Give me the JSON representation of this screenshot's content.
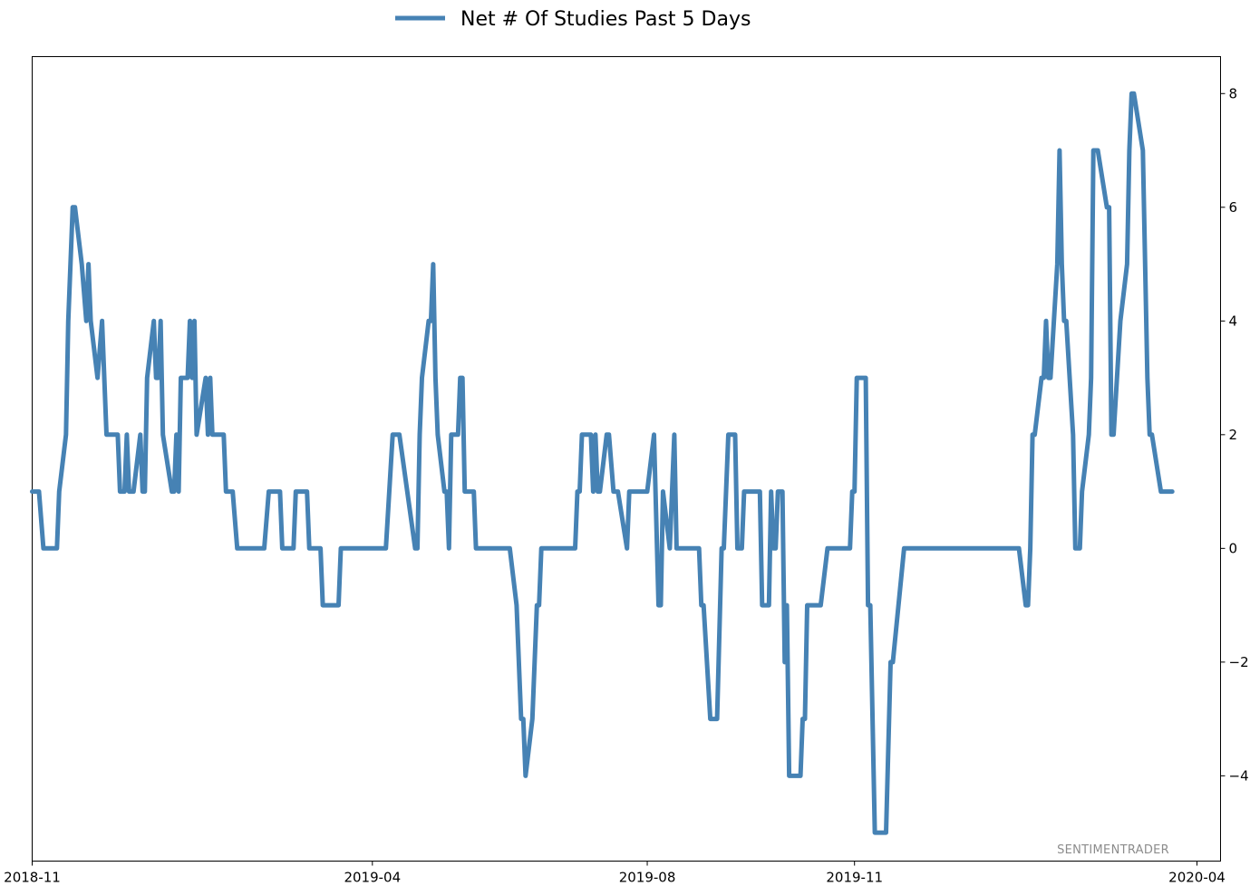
{
  "chart_data": {
    "type": "line",
    "title": "",
    "xlabel": "",
    "ylabel": "",
    "x_ticks": [
      "2018-11",
      "2019-04",
      "2019-08",
      "2019-11",
      "2020-04"
    ],
    "y_ticks": [
      -4,
      -2,
      0,
      2,
      4,
      6,
      8
    ],
    "ylim": [
      -5.5,
      8.65
    ],
    "xlim": [
      "2018-11-01",
      "2020-04-01"
    ],
    "grid": false,
    "legend_position": "top-center",
    "y_axis_side": "right",
    "watermark": "SENTIMENTRADER",
    "series": [
      {
        "name": "Net # Of Studies Past 5 Days",
        "color": "#4682b4",
        "points": [
          [
            "2018-11-01",
            1
          ],
          [
            "2018-11-04",
            1
          ],
          [
            "2018-11-06",
            0
          ],
          [
            "2018-11-12",
            0
          ],
          [
            "2018-11-13",
            1
          ],
          [
            "2018-11-16",
            2
          ],
          [
            "2018-11-17",
            4
          ],
          [
            "2018-11-19",
            6
          ],
          [
            "2018-11-20",
            6
          ],
          [
            "2018-11-23",
            5
          ],
          [
            "2018-11-25",
            4
          ],
          [
            "2018-11-26",
            5
          ],
          [
            "2018-11-27",
            4
          ],
          [
            "2018-11-30",
            3
          ],
          [
            "2018-12-02",
            4
          ],
          [
            "2018-12-04",
            2
          ],
          [
            "2018-12-09",
            2
          ],
          [
            "2018-12-10",
            1
          ],
          [
            "2018-12-12",
            1
          ],
          [
            "2018-12-13",
            2
          ],
          [
            "2018-12-14",
            1
          ],
          [
            "2018-12-16",
            1
          ],
          [
            "2018-12-19",
            2
          ],
          [
            "2018-12-20",
            1
          ],
          [
            "2018-12-21",
            1
          ],
          [
            "2018-12-22",
            3
          ],
          [
            "2018-12-25",
            4
          ],
          [
            "2018-12-26",
            3
          ],
          [
            "2018-12-27",
            3
          ],
          [
            "2018-12-28",
            4
          ],
          [
            "2018-12-29",
            2
          ],
          [
            "2019-01-02",
            1
          ],
          [
            "2019-01-03",
            1
          ],
          [
            "2019-01-04",
            2
          ],
          [
            "2019-01-05",
            1
          ],
          [
            "2019-01-06",
            3
          ],
          [
            "2019-01-09",
            3
          ],
          [
            "2019-01-10",
            4
          ],
          [
            "2019-01-11",
            3
          ],
          [
            "2019-01-12",
            4
          ],
          [
            "2019-01-13",
            2
          ],
          [
            "2019-01-17",
            3
          ],
          [
            "2019-01-18",
            2
          ],
          [
            "2019-01-19",
            3
          ],
          [
            "2019-01-20",
            2
          ],
          [
            "2019-01-25",
            2
          ],
          [
            "2019-01-26",
            1
          ],
          [
            "2019-01-29",
            1
          ],
          [
            "2019-01-31",
            0
          ],
          [
            "2019-02-12",
            0
          ],
          [
            "2019-02-14",
            1
          ],
          [
            "2019-02-19",
            1
          ],
          [
            "2019-02-20",
            0
          ],
          [
            "2019-02-25",
            0
          ],
          [
            "2019-02-26",
            1
          ],
          [
            "2019-03-03",
            1
          ],
          [
            "2019-03-04",
            0
          ],
          [
            "2019-03-09",
            0
          ],
          [
            "2019-03-10",
            -1
          ],
          [
            "2019-03-17",
            -1
          ],
          [
            "2019-03-18",
            0
          ],
          [
            "2019-04-07",
            0
          ],
          [
            "2019-04-10",
            2
          ],
          [
            "2019-04-13",
            2
          ],
          [
            "2019-04-20",
            0
          ],
          [
            "2019-04-21",
            0
          ],
          [
            "2019-04-22",
            2
          ],
          [
            "2019-04-23",
            3
          ],
          [
            "2019-04-26",
            4
          ],
          [
            "2019-04-27",
            4
          ],
          [
            "2019-04-28",
            5
          ],
          [
            "2019-04-29",
            3
          ],
          [
            "2019-04-30",
            2
          ],
          [
            "2019-05-03",
            1
          ],
          [
            "2019-05-04",
            1
          ],
          [
            "2019-05-05",
            0
          ],
          [
            "2019-05-06",
            2
          ],
          [
            "2019-05-09",
            2
          ],
          [
            "2019-05-10",
            3
          ],
          [
            "2019-05-11",
            3
          ],
          [
            "2019-05-12",
            1
          ],
          [
            "2019-05-16",
            1
          ],
          [
            "2019-05-17",
            0
          ],
          [
            "2019-06-01",
            0
          ],
          [
            "2019-06-04",
            -1
          ],
          [
            "2019-06-06",
            -3
          ],
          [
            "2019-06-07",
            -3
          ],
          [
            "2019-06-08",
            -4
          ],
          [
            "2019-06-11",
            -3
          ],
          [
            "2019-06-13",
            -1
          ],
          [
            "2019-06-14",
            -1
          ],
          [
            "2019-06-15",
            0
          ],
          [
            "2019-06-30",
            0
          ],
          [
            "2019-07-01",
            1
          ],
          [
            "2019-07-02",
            1
          ],
          [
            "2019-07-03",
            2
          ],
          [
            "2019-07-07",
            2
          ],
          [
            "2019-07-08",
            1
          ],
          [
            "2019-07-09",
            2
          ],
          [
            "2019-07-10",
            1
          ],
          [
            "2019-07-11",
            1
          ],
          [
            "2019-07-14",
            2
          ],
          [
            "2019-07-15",
            2
          ],
          [
            "2019-07-17",
            1
          ],
          [
            "2019-07-19",
            1
          ],
          [
            "2019-07-23",
            0
          ],
          [
            "2019-07-24",
            1
          ],
          [
            "2019-08-01",
            1
          ],
          [
            "2019-08-04",
            2
          ],
          [
            "2019-08-06",
            -1
          ],
          [
            "2019-08-07",
            -1
          ],
          [
            "2019-08-08",
            1
          ],
          [
            "2019-08-11",
            0
          ],
          [
            "2019-08-13",
            2
          ],
          [
            "2019-08-14",
            0
          ],
          [
            "2019-08-24",
            0
          ],
          [
            "2019-08-25",
            -1
          ],
          [
            "2019-08-26",
            -1
          ],
          [
            "2019-08-29",
            -3
          ],
          [
            "2019-09-01",
            -3
          ],
          [
            "2019-09-03",
            0
          ],
          [
            "2019-09-04",
            0
          ],
          [
            "2019-09-06",
            2
          ],
          [
            "2019-09-09",
            2
          ],
          [
            "2019-09-10",
            0
          ],
          [
            "2019-09-12",
            0
          ],
          [
            "2019-09-13",
            1
          ],
          [
            "2019-09-20",
            1
          ],
          [
            "2019-09-21",
            -1
          ],
          [
            "2019-09-24",
            -1
          ],
          [
            "2019-09-25",
            1
          ],
          [
            "2019-09-26",
            0
          ],
          [
            "2019-09-27",
            0
          ],
          [
            "2019-09-28",
            1
          ],
          [
            "2019-09-30",
            1
          ],
          [
            "2019-10-01",
            -2
          ],
          [
            "2019-10-02",
            -1
          ],
          [
            "2019-10-03",
            -4
          ],
          [
            "2019-10-08",
            -4
          ],
          [
            "2019-10-09",
            -3
          ],
          [
            "2019-10-10",
            -3
          ],
          [
            "2019-10-11",
            -1
          ],
          [
            "2019-10-17",
            -1
          ],
          [
            "2019-10-20",
            0
          ],
          [
            "2019-10-30",
            0
          ],
          [
            "2019-10-31",
            1
          ],
          [
            "2019-11-01",
            1
          ],
          [
            "2019-11-02",
            3
          ],
          [
            "2019-11-06",
            3
          ],
          [
            "2019-11-07",
            -1
          ],
          [
            "2019-11-08",
            -1
          ],
          [
            "2019-11-10",
            -5
          ],
          [
            "2019-11-15",
            -5
          ],
          [
            "2019-11-17",
            -2
          ],
          [
            "2019-11-18",
            -2
          ],
          [
            "2019-11-23",
            0
          ],
          [
            "2020-01-13",
            0
          ],
          [
            "2020-01-16",
            -1
          ],
          [
            "2020-01-17",
            -1
          ],
          [
            "2020-01-18",
            0
          ],
          [
            "2020-01-19",
            2
          ],
          [
            "2020-01-20",
            2
          ],
          [
            "2020-01-23",
            3
          ],
          [
            "2020-01-24",
            3
          ],
          [
            "2020-01-25",
            4
          ],
          [
            "2020-01-26",
            3
          ],
          [
            "2020-01-27",
            3
          ],
          [
            "2020-01-30",
            5
          ],
          [
            "2020-01-31",
            7
          ],
          [
            "2020-02-01",
            5
          ],
          [
            "2020-02-02",
            4
          ],
          [
            "2020-02-03",
            4
          ],
          [
            "2020-02-06",
            2
          ],
          [
            "2020-02-07",
            0
          ],
          [
            "2020-02-09",
            0
          ],
          [
            "2020-02-10",
            1
          ],
          [
            "2020-02-13",
            2
          ],
          [
            "2020-02-14",
            3
          ],
          [
            "2020-02-15",
            7
          ],
          [
            "2020-02-17",
            7
          ],
          [
            "2020-02-21",
            6
          ],
          [
            "2020-02-22",
            6
          ],
          [
            "2020-02-23",
            2
          ],
          [
            "2020-02-24",
            2
          ],
          [
            "2020-02-27",
            4
          ],
          [
            "2020-03-01",
            5
          ],
          [
            "2020-03-02",
            7
          ],
          [
            "2020-03-03",
            8
          ],
          [
            "2020-03-04",
            8
          ],
          [
            "2020-03-08",
            7
          ],
          [
            "2020-03-10",
            3
          ],
          [
            "2020-03-11",
            2
          ],
          [
            "2020-03-12",
            2
          ],
          [
            "2020-03-16",
            1
          ],
          [
            "2020-03-21",
            1
          ]
        ]
      }
    ]
  }
}
